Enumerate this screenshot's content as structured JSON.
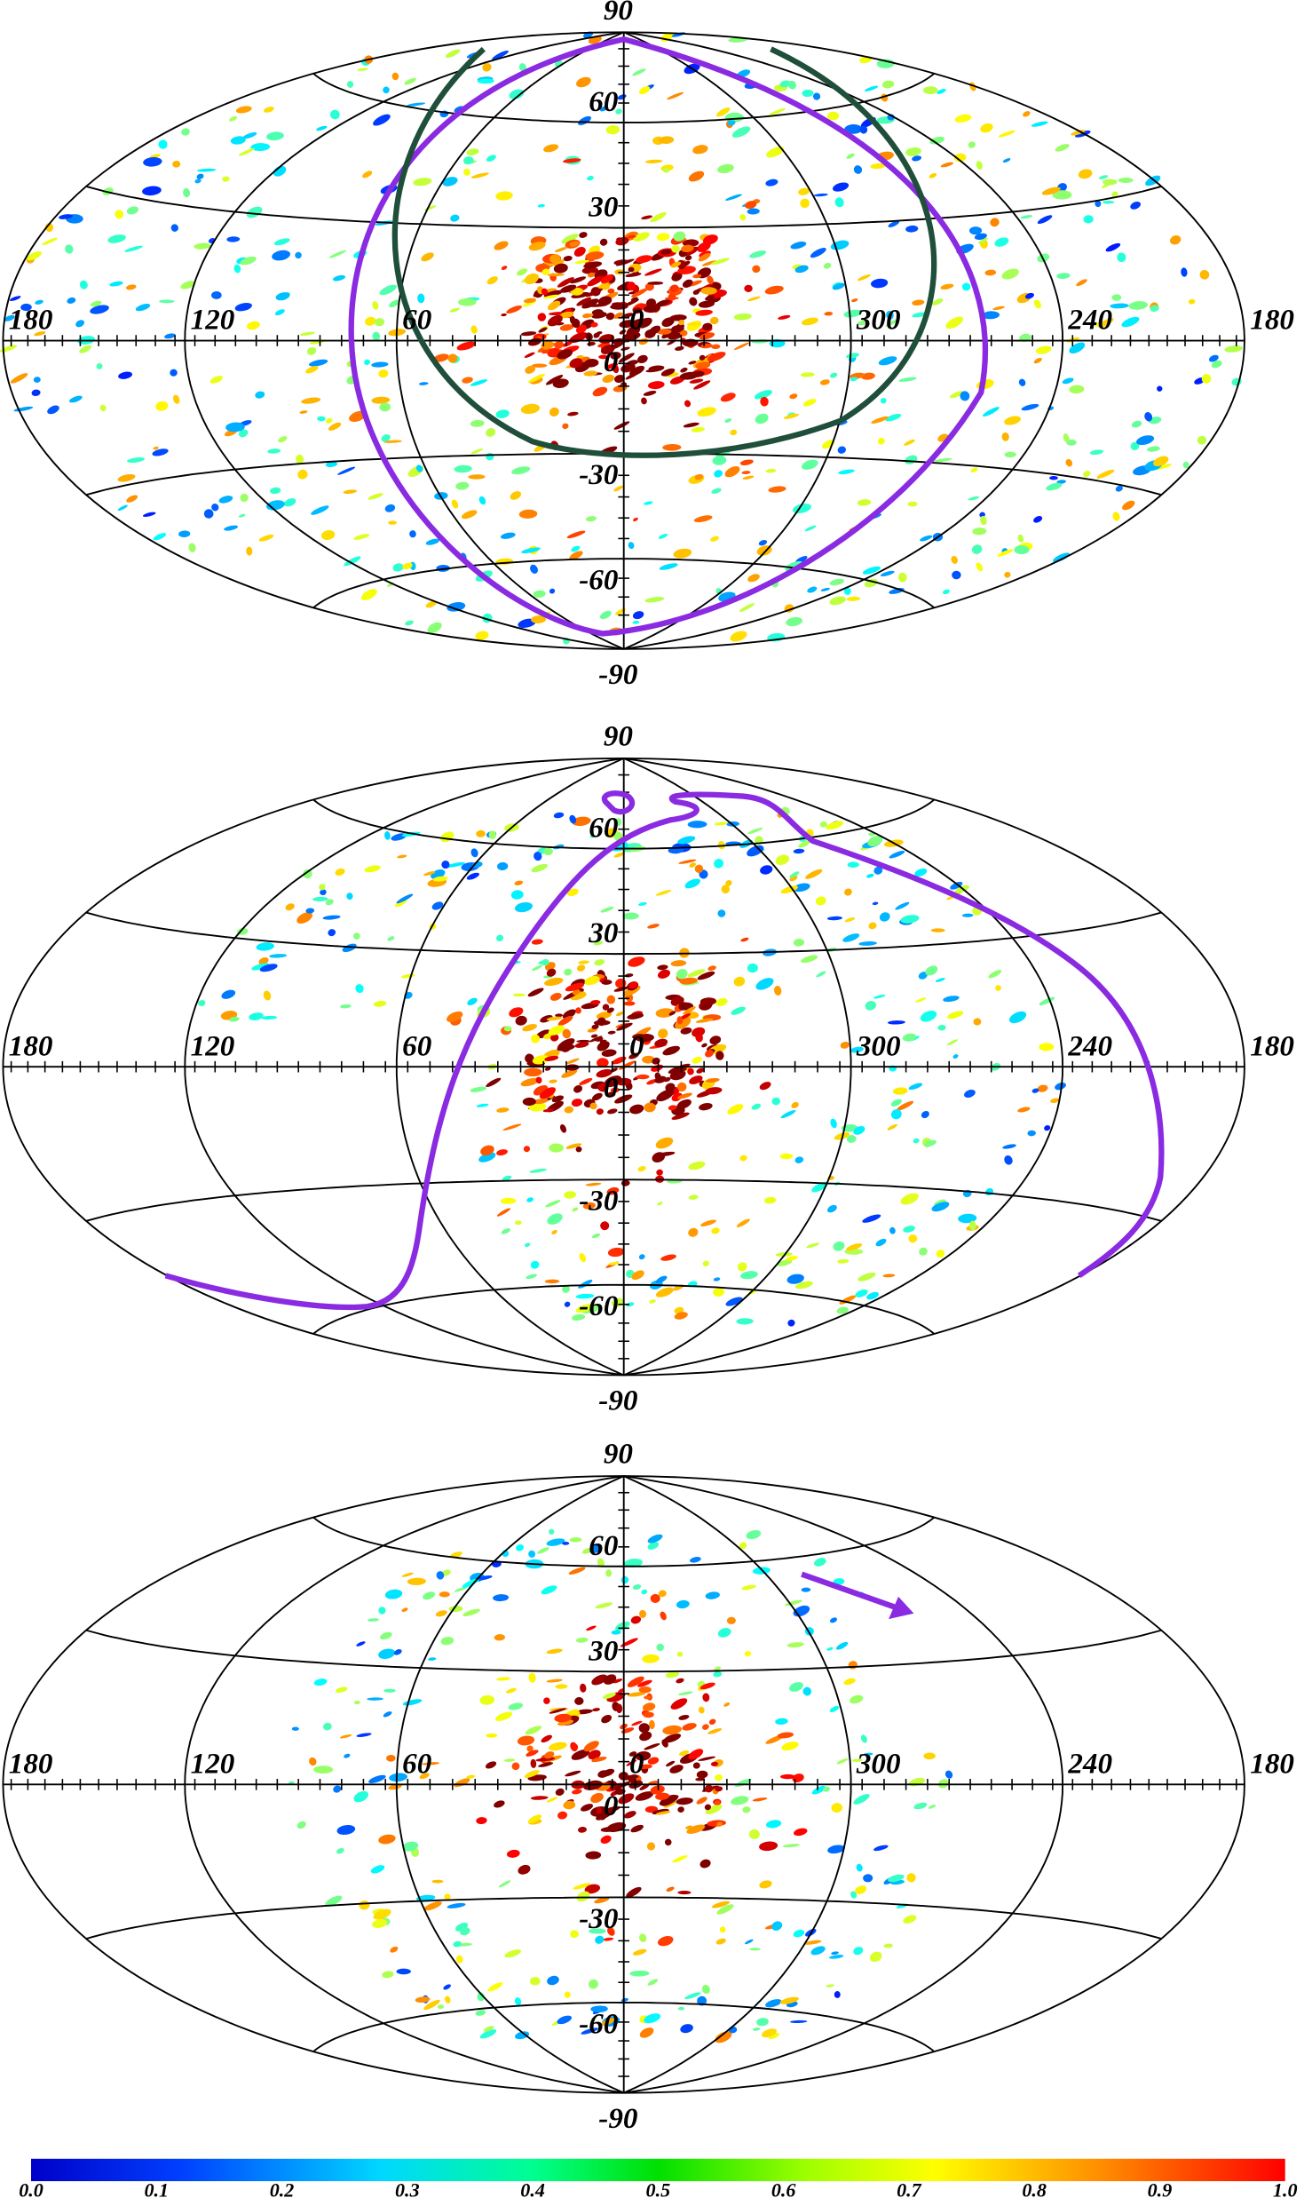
{
  "panels": [
    {
      "lat_labels": [
        "90",
        "60",
        "30",
        "0",
        "-30",
        "-60",
        "-90"
      ],
      "lon_labels": [
        "180",
        "120",
        "60",
        "0",
        "300",
        "240",
        "180"
      ]
    },
    {
      "lat_labels": [
        "90",
        "60",
        "30",
        "0",
        "-30",
        "-60",
        "-90"
      ],
      "lon_labels": [
        "180",
        "120",
        "60",
        "0",
        "300",
        "240",
        "180"
      ]
    },
    {
      "lat_labels": [
        "90",
        "60",
        "30",
        "0",
        "-30",
        "-60",
        "-90"
      ],
      "lon_labels": [
        "180",
        "120",
        "60",
        "0",
        "300",
        "240",
        "180"
      ]
    }
  ],
  "colorbar": {
    "labels": [
      "0.0",
      "0.1",
      "0.2",
      "0.3",
      "0.4",
      "0.5",
      "0.6",
      "0.7",
      "0.8",
      "0.9",
      "1.0"
    ]
  }
}
